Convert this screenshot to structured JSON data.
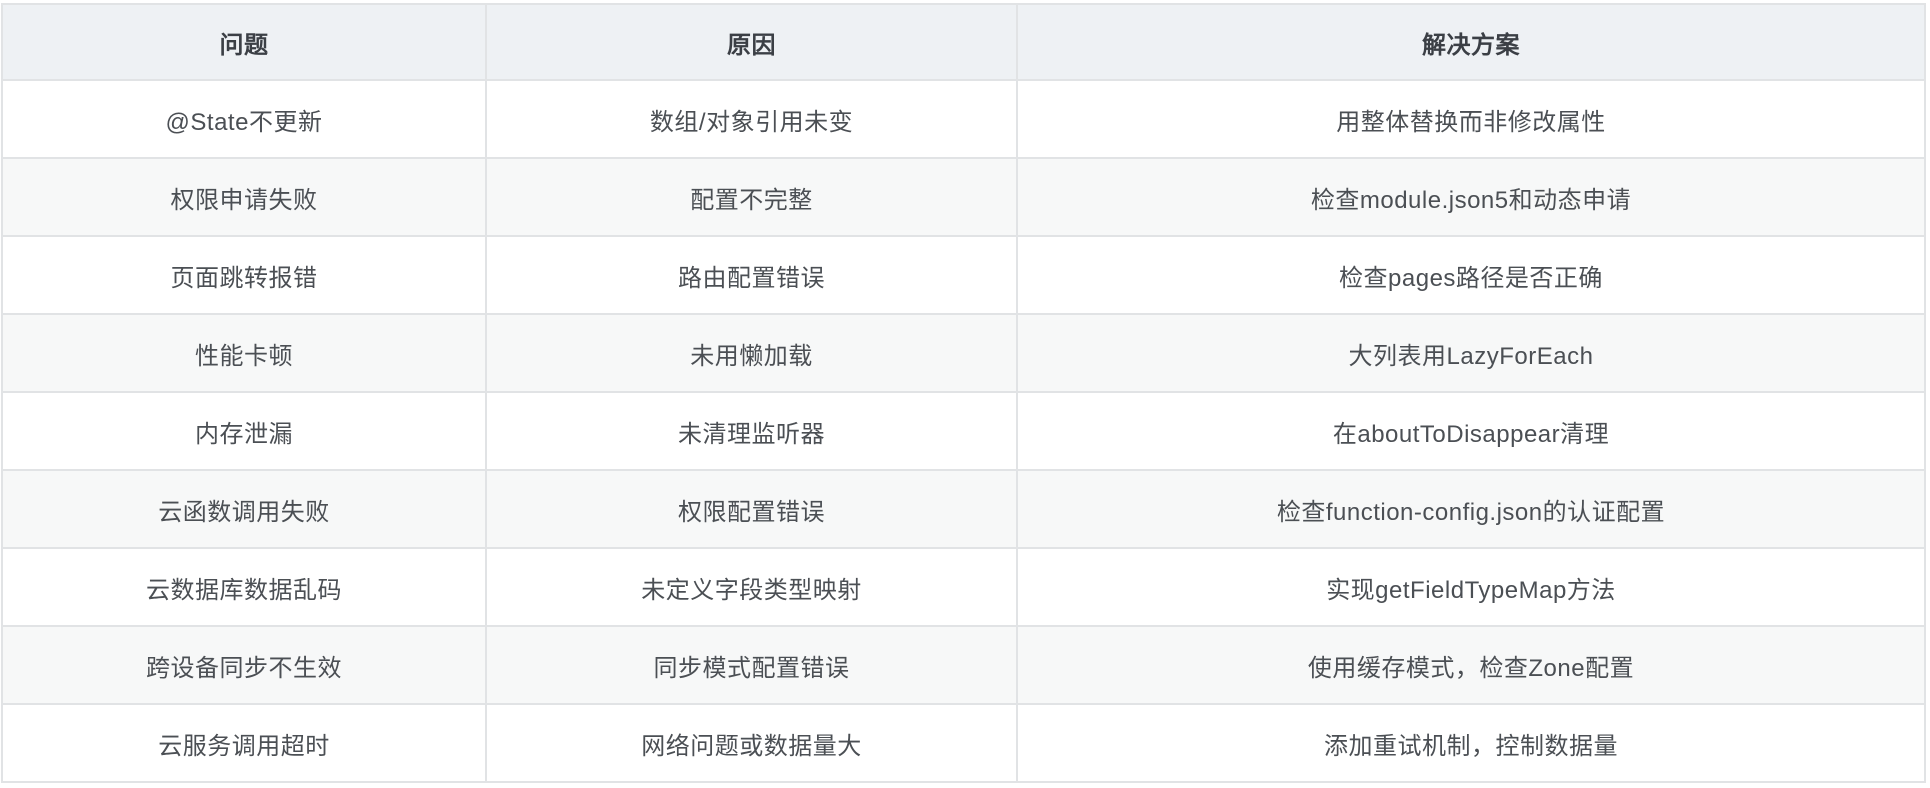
{
  "table": {
    "columns": [
      {
        "label": "问题"
      },
      {
        "label": "原因"
      },
      {
        "label": "解决方案"
      }
    ],
    "rows": [
      {
        "problem": "@State不更新",
        "cause": "数组/对象引用未变",
        "solution": "用整体替换而非修改属性"
      },
      {
        "problem": "权限申请失败",
        "cause": "配置不完整",
        "solution": "检查module.json5和动态申请"
      },
      {
        "problem": "页面跳转报错",
        "cause": "路由配置错误",
        "solution": "检查pages路径是否正确"
      },
      {
        "problem": "性能卡顿",
        "cause": "未用懒加载",
        "solution": "大列表用LazyForEach"
      },
      {
        "problem": "内存泄漏",
        "cause": "未清理监听器",
        "solution": "在aboutToDisappear清理"
      },
      {
        "problem": "云函数调用失败",
        "cause": "权限配置错误",
        "solution": "检查function-config.json的认证配置"
      },
      {
        "problem": "云数据库数据乱码",
        "cause": "未定义字段类型映射",
        "solution": "实现getFieldTypeMap方法"
      },
      {
        "problem": "跨设备同步不生效",
        "cause": "同步模式配置错误",
        "solution": "使用缓存模式，检查Zone配置"
      },
      {
        "problem": "云服务调用超时",
        "cause": "网络问题或数据量大",
        "solution": "添加重试机制，控制数据量"
      }
    ],
    "colors": {
      "header_bg": "#eef1f4",
      "stripe_bg": "#f7f8f8",
      "border": "#e1e3e5",
      "body_text": "#4b4f54",
      "header_text": "#3b3f45"
    }
  }
}
